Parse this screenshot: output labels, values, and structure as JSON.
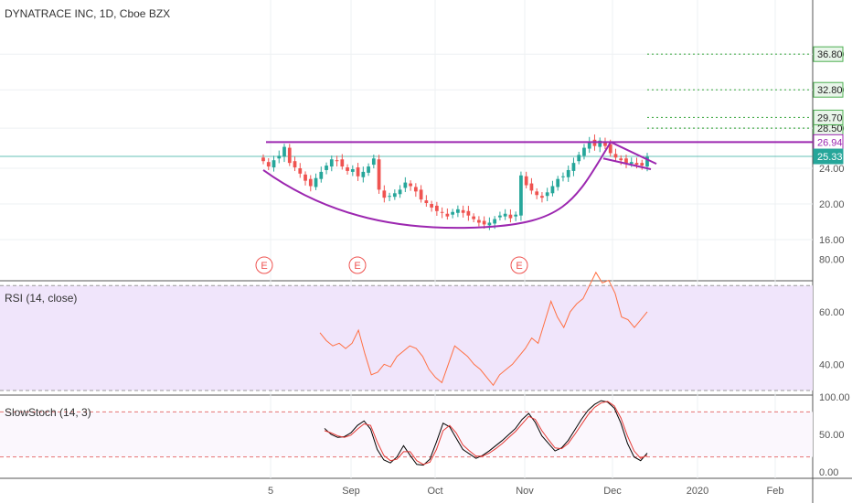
{
  "header": {
    "title": "DYNATRACE INC, 1D, Cboe BZX"
  },
  "colors": {
    "up": "#26a69a",
    "down": "#ef5350",
    "pattern": "#9c27b0",
    "target": "#4caf50",
    "price_line": "#26a69a",
    "rsi": "#ff7043",
    "stoch_k": "#000000",
    "stoch_d": "#e53935",
    "band": "#f0e5fb"
  },
  "chart_data": [
    {
      "type": "candlestick",
      "title": "DYNATRACE INC, 1D, Cboe BZX",
      "ylim": [
        15,
        37
      ],
      "y_ticks": [
        16,
        20,
        24,
        28.5,
        32.8,
        36.8
      ],
      "y_tick_labels": [
        "16.00",
        "20.00",
        "24.00",
        "28.50",
        "32.80",
        "36.80"
      ],
      "x_tick_labels": [
        "5",
        "Sep",
        "Oct",
        "Nov",
        "Dec",
        "2020",
        "Feb"
      ],
      "close_series": [
        24.8,
        24.2,
        24.9,
        25.4,
        26.4,
        24.6,
        24.1,
        23.4,
        22.6,
        22.0,
        22.9,
        23.6,
        24.3,
        25.0,
        24.8,
        24.2,
        23.7,
        23.9,
        23.1,
        23.6,
        24.2,
        25.1,
        21.6,
        20.7,
        20.9,
        21.2,
        21.6,
        22.4,
        22.0,
        21.4,
        20.5,
        20.1,
        19.6,
        19.2,
        19.0,
        18.6,
        19.1,
        19.4,
        19.0,
        18.7,
        18.3,
        17.9,
        17.7,
        17.9,
        18.3,
        18.7,
        18.9,
        18.4,
        18.8,
        23.2,
        22.1,
        21.5,
        21.0,
        20.7,
        21.3,
        22.0,
        22.8,
        23.1,
        23.8,
        24.6,
        25.5,
        26.3,
        27.0,
        26.5,
        27.1,
        26.5,
        25.7,
        25.2,
        24.9,
        24.6,
        24.7,
        24.4,
        24.3,
        25.3
      ],
      "pattern": {
        "resistance": 26.94,
        "cup_bottom": 17.4,
        "handle_upper": [
          26.94,
          24.5
        ],
        "handle_lower": [
          25.1,
          23.9
        ]
      },
      "targets": [
        {
          "value": 28.5,
          "label": "28.50"
        },
        {
          "value": 29.7,
          "label": "29.70"
        },
        {
          "value": 32.8,
          "label": "32.80"
        },
        {
          "value": 36.8,
          "label": "36.80"
        }
      ],
      "last_price": {
        "value": 25.33,
        "label": "25.33"
      },
      "resistance_tag": {
        "value": 26.94,
        "label": "26.94"
      },
      "earnings_markers": [
        "E",
        "E",
        "E"
      ]
    },
    {
      "type": "line",
      "title": "RSI (14, close)",
      "ylim": [
        30,
        82
      ],
      "y_ticks": [
        40,
        60,
        80
      ],
      "y_tick_labels": [
        "40.00",
        "60.00",
        "80.00"
      ],
      "band": [
        30,
        70
      ],
      "values": [
        52,
        49,
        47,
        48,
        46,
        48,
        53,
        44,
        36,
        37,
        40,
        39,
        43,
        45,
        47,
        46,
        43,
        38,
        35,
        33,
        40,
        47,
        45,
        43,
        40,
        38,
        35,
        32,
        36,
        38,
        40,
        43,
        46,
        50,
        48,
        56,
        64,
        58,
        54,
        60,
        63,
        65,
        70,
        75,
        71,
        72,
        67,
        58,
        57,
        54,
        57,
        60
      ]
    },
    {
      "type": "line",
      "title": "SlowStoch (14, 3)",
      "ylim": [
        0,
        108
      ],
      "y_ticks": [
        0,
        50,
        100
      ],
      "y_tick_labels": [
        "0.00",
        "50.00",
        "100.00"
      ],
      "levels": [
        20,
        80
      ],
      "series": [
        {
          "values": [
            58,
            50,
            46,
            47,
            52,
            62,
            68,
            57,
            30,
            16,
            12,
            20,
            35,
            22,
            10,
            9,
            17,
            40,
            65,
            60,
            45,
            30,
            24,
            18,
            22,
            28,
            35,
            42,
            50,
            58,
            70,
            78,
            66,
            48,
            38,
            28,
            32,
            42,
            56,
            70,
            82,
            90,
            95,
            93,
            85,
            65,
            38,
            20,
            15,
            25
          ]
        },
        {
          "values": [
            55,
            52,
            48,
            46,
            49,
            57,
            64,
            62,
            40,
            22,
            15,
            17,
            27,
            27,
            15,
            10,
            13,
            30,
            55,
            62,
            52,
            36,
            28,
            21,
            21,
            25,
            31,
            38,
            46,
            54,
            64,
            74,
            70,
            55,
            43,
            32,
            31,
            38,
            50,
            63,
            76,
            86,
            92,
            94,
            88,
            72,
            48,
            28,
            18,
            22
          ]
        }
      ]
    }
  ]
}
